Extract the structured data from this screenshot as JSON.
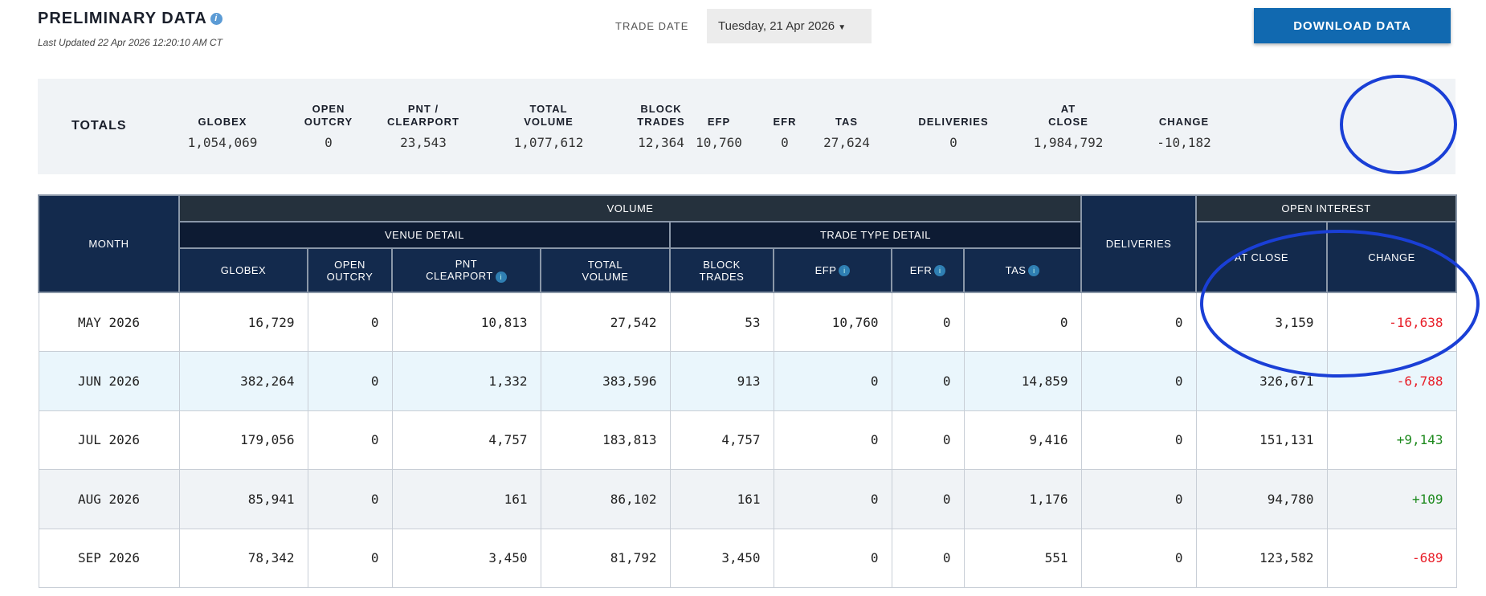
{
  "header": {
    "title": "PRELIMINARY DATA",
    "last_updated": "Last Updated 22 Apr 2026 12:20:10 AM CT",
    "trade_date_label": "TRADE DATE",
    "trade_date_value": "Tuesday, 21 Apr 2026",
    "download_label": "DOWNLOAD DATA"
  },
  "totals": {
    "label": "TOTALS",
    "cols": [
      {
        "h1": "",
        "h2": "GLOBEX",
        "v": "1,054,069"
      },
      {
        "h1": "OPEN",
        "h2": "OUTCRY",
        "v": "0"
      },
      {
        "h1": "PNT /",
        "h2": "CLEARPORT",
        "v": "23,543"
      },
      {
        "h1": "TOTAL",
        "h2": "VOLUME",
        "v": "1,077,612"
      },
      {
        "h1": "BLOCK",
        "h2": "TRADES",
        "v": "12,364"
      },
      {
        "h1": "",
        "h2": "EFP",
        "v": "10,760"
      },
      {
        "h1": "",
        "h2": "EFR",
        "v": "0"
      },
      {
        "h1": "",
        "h2": "TAS",
        "v": "27,624"
      },
      {
        "h1": "",
        "h2": "DELIVERIES",
        "v": "0"
      },
      {
        "h1": "AT",
        "h2": "CLOSE",
        "v": "1,984,792"
      },
      {
        "h1": "",
        "h2": "CHANGE",
        "v": "-10,182"
      }
    ]
  },
  "table": {
    "month": "MONTH",
    "volume": "VOLUME",
    "venue_detail": "VENUE DETAIL",
    "trade_type_detail": "TRADE TYPE DETAIL",
    "deliveries": "DELIVERIES",
    "open_interest": "OPEN INTEREST",
    "cols": {
      "globex": "GLOBEX",
      "open1": "OPEN",
      "open2": "OUTCRY",
      "pnt1": "PNT",
      "pnt2": "CLEARPORT",
      "tv1": "TOTAL",
      "tv2": "VOLUME",
      "bt1": "BLOCK",
      "bt2": "TRADES",
      "efp": "EFP",
      "efr": "EFR",
      "tas": "TAS",
      "at_close": "AT CLOSE",
      "change": "CHANGE"
    },
    "rows": [
      [
        "MAY 2026",
        "16,729",
        "0",
        "10,813",
        "27,542",
        "53",
        "10,760",
        "0",
        "0",
        "0",
        "3,159",
        "-16,638"
      ],
      [
        "JUN 2026",
        "382,264",
        "0",
        "1,332",
        "383,596",
        "913",
        "0",
        "0",
        "14,859",
        "0",
        "326,671",
        "-6,788"
      ],
      [
        "JUL 2026",
        "179,056",
        "0",
        "4,757",
        "183,813",
        "4,757",
        "0",
        "0",
        "9,416",
        "0",
        "151,131",
        "+9,143"
      ],
      [
        "AUG 2026",
        "85,941",
        "0",
        "161",
        "86,102",
        "161",
        "0",
        "0",
        "1,176",
        "0",
        "94,780",
        "+109"
      ],
      [
        "SEP 2026",
        "78,342",
        "0",
        "3,450",
        "81,792",
        "3,450",
        "0",
        "0",
        "551",
        "0",
        "123,582",
        "-689"
      ]
    ]
  },
  "colors": {
    "annotation": "#1a3fd6",
    "negative": "#e8202a",
    "positive": "#1e8a1e",
    "header": "#132a4d",
    "button": "#1169b0"
  }
}
